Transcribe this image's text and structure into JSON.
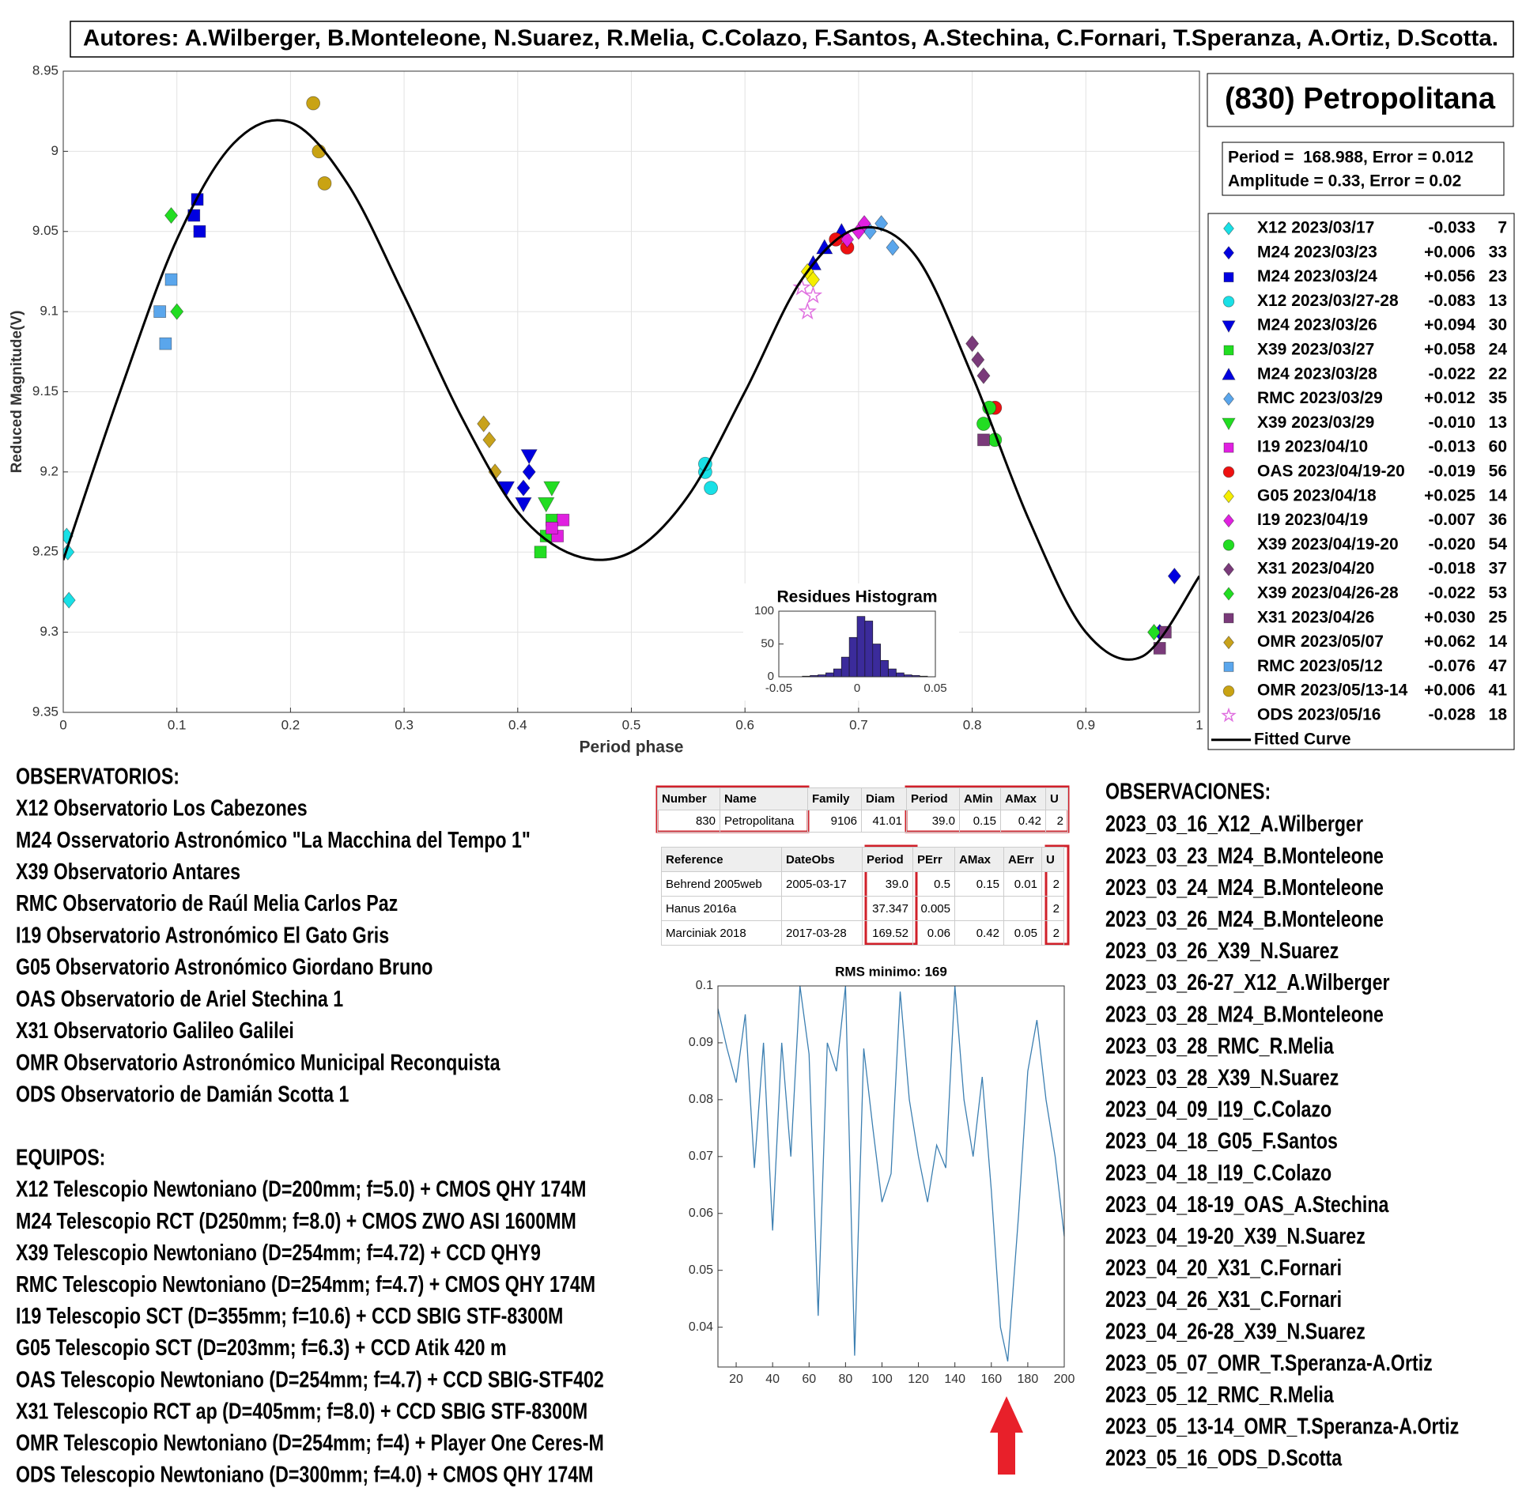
{
  "authors": "Autores: A.Wilberger, B.Monteleone, N.Suarez, R.Melia, C.Colazo, F.Santos, A.Stechina, C.Fornari, T.Speranza, A.Ortiz, D.Scotta.",
  "chart_data": [
    {
      "type": "scatter",
      "title": "(830) Petropolitana",
      "annotations": [
        "Period =  168.988, Error = 0.012",
        "Amplitude = 0.33, Error = 0.02"
      ],
      "x_label": "Period phase",
      "y_label": "Reduced Magnitude(V)",
      "xlim": [
        0,
        1
      ],
      "xticks": [
        0,
        0.1,
        0.2,
        0.3,
        0.4,
        0.5,
        0.6,
        0.7,
        0.8,
        0.9,
        1
      ],
      "ylim": [
        8.95,
        9.35
      ],
      "yticks": [
        8.95,
        9,
        9.05,
        9.1,
        9.15,
        9.2,
        9.25,
        9.3,
        9.35
      ],
      "y_reversed": true,
      "grid": true,
      "legend": "outside-right",
      "series": [
        {
          "name": "X12 2023/03/17",
          "shift": "-0.033",
          "n": 7,
          "marker": "diamond",
          "color": "#19e0e6",
          "x": [
            0.003,
            0.004,
            0.005
          ],
          "values": [
            9.24,
            9.25,
            9.28
          ]
        },
        {
          "name": "M24 2023/03/23",
          "shift": "+0.006",
          "n": 33,
          "marker": "diamond",
          "color": "#0000e0",
          "x": [
            0.405,
            0.41,
            0.965,
            0.978
          ],
          "values": [
            9.21,
            9.2,
            9.3,
            9.265
          ]
        },
        {
          "name": "M24 2023/03/24",
          "shift": "+0.056",
          "n": 23,
          "marker": "square",
          "color": "#0000e0",
          "x": [
            0.115,
            0.12,
            0.118
          ],
          "values": [
            9.04,
            9.05,
            9.03
          ]
        },
        {
          "name": "X12 2023/03/27-28",
          "shift": "-0.083",
          "n": 13,
          "marker": "circle",
          "color": "#19e0e6",
          "x": [
            0.565,
            0.57,
            0.565
          ],
          "values": [
            9.2,
            9.21,
            9.195
          ]
        },
        {
          "name": "M24 2023/03/26",
          "shift": "+0.094",
          "n": 30,
          "marker": "triangle-down",
          "color": "#0000e0",
          "x": [
            0.39,
            0.405,
            0.41
          ],
          "values": [
            9.21,
            9.22,
            9.19
          ]
        },
        {
          "name": "X39 2023/03/27",
          "shift": "+0.058",
          "n": 24,
          "marker": "square",
          "color": "#22dd22",
          "x": [
            0.42,
            0.425,
            0.43
          ],
          "values": [
            9.25,
            9.24,
            9.23
          ]
        },
        {
          "name": "M24 2023/03/28",
          "shift": "-0.022",
          "n": 22,
          "marker": "triangle-up",
          "color": "#0000e0",
          "x": [
            0.67,
            0.685,
            0.66
          ],
          "values": [
            9.06,
            9.05,
            9.07
          ]
        },
        {
          "name": "RMC 2023/03/29",
          "shift": "+0.012",
          "n": 35,
          "marker": "diamond",
          "color": "#5aa6ec",
          "x": [
            0.71,
            0.72,
            0.73
          ],
          "values": [
            9.05,
            9.045,
            9.06
          ]
        },
        {
          "name": "X39 2023/03/29",
          "shift": "-0.010",
          "n": 13,
          "marker": "triangle-down",
          "color": "#22dd22",
          "x": [
            0.43,
            0.425
          ],
          "values": [
            9.21,
            9.22
          ]
        },
        {
          "name": "I19 2023/04/10",
          "shift": "-0.013",
          "n": 60,
          "marker": "square",
          "color": "#e020e0",
          "x": [
            0.435,
            0.44,
            0.43
          ],
          "values": [
            9.24,
            9.23,
            9.235
          ]
        },
        {
          "name": "OAS 2023/04/19-20",
          "shift": "-0.019",
          "n": 56,
          "marker": "circle",
          "color": "#ee1111",
          "x": [
            0.68,
            0.69,
            0.82
          ],
          "values": [
            9.055,
            9.06,
            9.16
          ]
        },
        {
          "name": "G05 2023/04/18",
          "shift": "+0.025",
          "n": 14,
          "marker": "diamond",
          "color": "#f5ee00",
          "x": [
            0.655,
            0.66
          ],
          "values": [
            9.075,
            9.08
          ]
        },
        {
          "name": "I19 2023/04/19",
          "shift": "-0.007",
          "n": 36,
          "marker": "diamond",
          "color": "#e020e0",
          "x": [
            0.7,
            0.705,
            0.69
          ],
          "values": [
            9.05,
            9.045,
            9.055
          ]
        },
        {
          "name": "X39 2023/04/19-20",
          "shift": "-0.020",
          "n": 54,
          "marker": "circle",
          "color": "#22dd22",
          "x": [
            0.81,
            0.82,
            0.815
          ],
          "values": [
            9.17,
            9.18,
            9.16
          ]
        },
        {
          "name": "X31 2023/04/20",
          "shift": "-0.018",
          "n": 37,
          "marker": "diamond",
          "color": "#7a3a7a",
          "x": [
            0.8,
            0.805,
            0.81
          ],
          "values": [
            9.12,
            9.13,
            9.14
          ]
        },
        {
          "name": "X39 2023/04/26-28",
          "shift": "-0.022",
          "n": 53,
          "marker": "diamond",
          "color": "#22dd22",
          "x": [
            0.095,
            0.1,
            0.96
          ],
          "values": [
            9.04,
            9.1,
            9.3
          ]
        },
        {
          "name": "X31 2023/04/26",
          "shift": "+0.030",
          "n": 25,
          "marker": "square",
          "color": "#7a3a7a",
          "x": [
            0.81,
            0.965,
            0.97
          ],
          "values": [
            9.18,
            9.31,
            9.3
          ]
        },
        {
          "name": "OMR 2023/05/07",
          "shift": "+0.062",
          "n": 14,
          "marker": "diamond",
          "color": "#c8a21b",
          "x": [
            0.37,
            0.375,
            0.38
          ],
          "values": [
            9.17,
            9.18,
            9.2
          ]
        },
        {
          "name": "RMC 2023/05/12",
          "shift": "-0.076",
          "n": 47,
          "marker": "square",
          "color": "#5aa6ec",
          "x": [
            0.085,
            0.09,
            0.095
          ],
          "values": [
            9.1,
            9.12,
            9.08
          ]
        },
        {
          "name": "OMR 2023/05/13-14",
          "shift": "+0.006",
          "n": 41,
          "marker": "circle",
          "color": "#c9a313",
          "x": [
            0.22,
            0.225,
            0.23
          ],
          "values": [
            8.97,
            9.0,
            9.02
          ]
        },
        {
          "name": "ODS 2023/05/16",
          "shift": "-0.028",
          "n": 18,
          "marker": "star",
          "color": "#e070e0",
          "x": [
            0.655,
            0.66,
            0.65
          ],
          "values": [
            9.1,
            9.09,
            9.085
          ]
        },
        {
          "name": "Fitted Curve",
          "style": "line",
          "color": "#000000",
          "x": [
            0,
            0.05,
            0.1,
            0.15,
            0.2,
            0.25,
            0.3,
            0.35,
            0.4,
            0.45,
            0.5,
            0.55,
            0.6,
            0.65,
            0.7,
            0.75,
            0.8,
            0.85,
            0.9,
            0.95,
            1
          ],
          "values": [
            9.255,
            9.15,
            9.055,
            8.995,
            8.982,
            9.02,
            9.09,
            9.165,
            9.225,
            9.252,
            9.25,
            9.215,
            9.15,
            9.08,
            9.048,
            9.065,
            9.14,
            9.23,
            9.3,
            9.315,
            9.265
          ]
        }
      ]
    },
    {
      "type": "histogram",
      "title": "Residues Histogram",
      "color": "#3b2b9b",
      "bins": [
        -0.05,
        -0.045,
        -0.04,
        -0.035,
        -0.03,
        -0.025,
        -0.02,
        -0.015,
        -0.01,
        -0.005,
        0,
        0.005,
        0.01,
        0.015,
        0.02,
        0.025,
        0.03,
        0.035,
        0.04,
        0.045,
        0.05
      ],
      "counts": [
        0,
        0,
        0,
        1,
        2,
        3,
        6,
        12,
        30,
        60,
        92,
        85,
        50,
        25,
        12,
        6,
        3,
        2,
        1,
        0
      ],
      "xlim": [
        -0.05,
        0.05
      ],
      "xticks": [
        -0.05,
        0,
        0.05
      ],
      "ylim": [
        0,
        100
      ],
      "yticks": [
        0,
        50,
        100
      ]
    },
    {
      "type": "line",
      "title": "RMS minimo: 169",
      "color": "#3c7fb1",
      "x": [
        10,
        15,
        20,
        25,
        30,
        35,
        40,
        45,
        50,
        55,
        60,
        65,
        70,
        75,
        80,
        85,
        90,
        95,
        100,
        105,
        110,
        115,
        120,
        125,
        130,
        135,
        140,
        145,
        150,
        155,
        160,
        165,
        169,
        175,
        180,
        185,
        190,
        195,
        200
      ],
      "values": [
        0.096,
        0.089,
        0.083,
        0.095,
        0.068,
        0.09,
        0.057,
        0.09,
        0.07,
        0.1,
        0.088,
        0.042,
        0.09,
        0.085,
        0.1,
        0.035,
        0.089,
        0.075,
        0.062,
        0.067,
        0.099,
        0.08,
        0.07,
        0.062,
        0.072,
        0.068,
        0.1,
        0.08,
        0.07,
        0.084,
        0.064,
        0.04,
        0.034,
        0.06,
        0.085,
        0.094,
        0.08,
        0.07,
        0.056
      ],
      "xlim": [
        10,
        200
      ],
      "xticks": [
        20,
        40,
        60,
        80,
        100,
        120,
        140,
        160,
        180,
        200
      ],
      "ylim": [
        0.033,
        0.1
      ],
      "yticks": [
        0.04,
        0.05,
        0.06,
        0.07,
        0.08,
        0.09,
        0.1
      ]
    }
  ],
  "observatorios": {
    "title": "OBSERVATORIOS:",
    "items": [
      "X12 Observatorio Los Cabezones",
      "M24 Osservatorio Astronómico \"La Macchina del Tempo 1\"",
      "X39 Observatorio Antares",
      "RMC Observatorio de Raúl Melia Carlos Paz",
      "I19 Observatorio Astronómico El Gato Gris",
      "G05 Observatorio Astronómico Giordano Bruno",
      "OAS Observatorio de Ariel Stechina 1",
      "X31 Observatorio Galileo Galilei",
      "OMR Observatorio Astronómico Municipal Reconquista",
      "ODS Observatorio de Damián Scotta 1"
    ]
  },
  "equipos": {
    "title": "EQUIPOS:",
    "items": [
      "X12 Telescopio Newtoniano (D=200mm; f=5.0) + CMOS QHY 174M",
      "M24 Telescopio RCT (D250mm; f=8.0) + CMOS ZWO ASI 1600MM",
      "X39 Telescopio Newtoniano (D=254mm; f=4.72) + CCD QHY9",
      "RMC Telescopio Newtoniano (D=254mm; f=4.7) + CMOS QHY 174M",
      "I19 Telescopio SCT (D=355mm; f=10.6) + CCD SBIG STF-8300M",
      "G05 Telescopio SCT (D=203mm; f=6.3) + CCD Atik 420 m",
      "OAS Telescopio Newtoniano (D=254mm; f=4.7) + CCD SBIG-STF402",
      "X31 Telescopio RCT ap (D=405mm; f=8.0) + CCD SBIG STF-8300M",
      "OMR Telescopio Newtoniano (D=254mm; f=4) + Player One Ceres-M",
      "ODS Telescopio Newtoniano (D=300mm; f=4.0) + CMOS QHY 174M"
    ]
  },
  "observaciones": {
    "title": "OBSERVACIONES:",
    "items": [
      "2023_03_16_X12_A.Wilberger",
      "2023_03_23_M24_B.Monteleone",
      "2023_03_24_M24_B.Monteleone",
      "2023_03_26_M24_B.Monteleone",
      "2023_03_26_X39_N.Suarez",
      "2023_03_26-27_X12_A.Wilberger",
      "2023_03_28_M24_B.Monteleone",
      "2023_03_28_RMC_R.Melia",
      "2023_03_28_X39_N.Suarez",
      "2023_04_09_I19_C.Colazo",
      "2023_04_18_G05_F.Santos",
      "2023_04_18_I19_C.Colazo",
      "2023_04_18-19_OAS_A.Stechina",
      "2023_04_19-20_X39_N.Suarez",
      "2023_04_20_X31_C.Fornari",
      "2023_04_26_X31_C.Fornari",
      "2023_04_26-28_X39_N.Suarez",
      "2023_05_07_OMR_T.Speranza-A.Ortiz",
      "2023_05_12_RMC_R.Melia",
      "2023_05_13-14_OMR_T.Speranza-A.Ortiz",
      "2023_05_16_ODS_D.Scotta"
    ]
  },
  "tables": [
    {
      "headers": [
        "Number",
        "Name",
        "Family",
        "Diam",
        "Period",
        "AMin",
        "AMax",
        "U"
      ],
      "rows": [
        [
          830,
          "Petropolitana",
          9106,
          41.01,
          "39.0",
          0.15,
          0.42,
          2
        ]
      ]
    },
    {
      "headers": [
        "Reference",
        "DateObs",
        "Period",
        "PErr",
        "AMax",
        "AErr",
        "U"
      ],
      "rows": [
        [
          "Behrend 2005web",
          "2005-03-17",
          "39.0",
          0.5,
          0.15,
          0.01,
          2
        ],
        [
          "Hanus 2016a",
          null,
          37.347,
          0.005,
          null,
          null,
          2
        ],
        [
          "Marciniak 2018",
          "2017-03-28",
          169.52,
          0.06,
          0.42,
          0.05,
          2
        ]
      ]
    }
  ]
}
